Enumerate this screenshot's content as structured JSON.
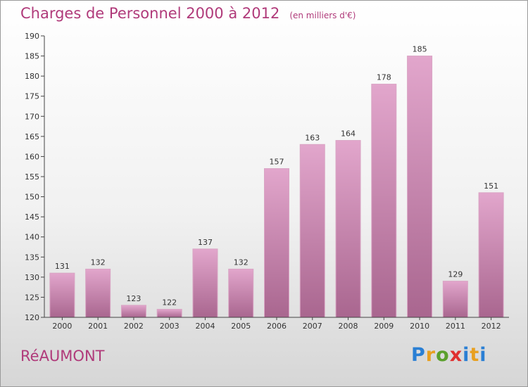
{
  "title": "Charges de Personnel 2000 à 2012",
  "unit": "(en milliers d'€)",
  "city": "RéAUMONT",
  "logo": "Proxiti",
  "colors": {
    "accent": "#b03a7a",
    "bar_top": "#e2a6cc",
    "bar_bottom": "#a9668f"
  },
  "chart_data": {
    "type": "bar",
    "title": "Charges de Personnel 2000 à 2012",
    "subtitle": "(en milliers d'€)",
    "xlabel": "",
    "ylabel": "",
    "categories": [
      "2000",
      "2001",
      "2002",
      "2003",
      "2004",
      "2005",
      "2006",
      "2007",
      "2008",
      "2009",
      "2010",
      "2011",
      "2012"
    ],
    "values": [
      131,
      132,
      123,
      122,
      137,
      132,
      157,
      163,
      164,
      178,
      185,
      129,
      151
    ],
    "ylim": [
      120,
      190
    ],
    "yticks": [
      120,
      125,
      130,
      135,
      140,
      145,
      150,
      155,
      160,
      165,
      170,
      175,
      180,
      185,
      190
    ],
    "grid": false,
    "legend": "none"
  }
}
